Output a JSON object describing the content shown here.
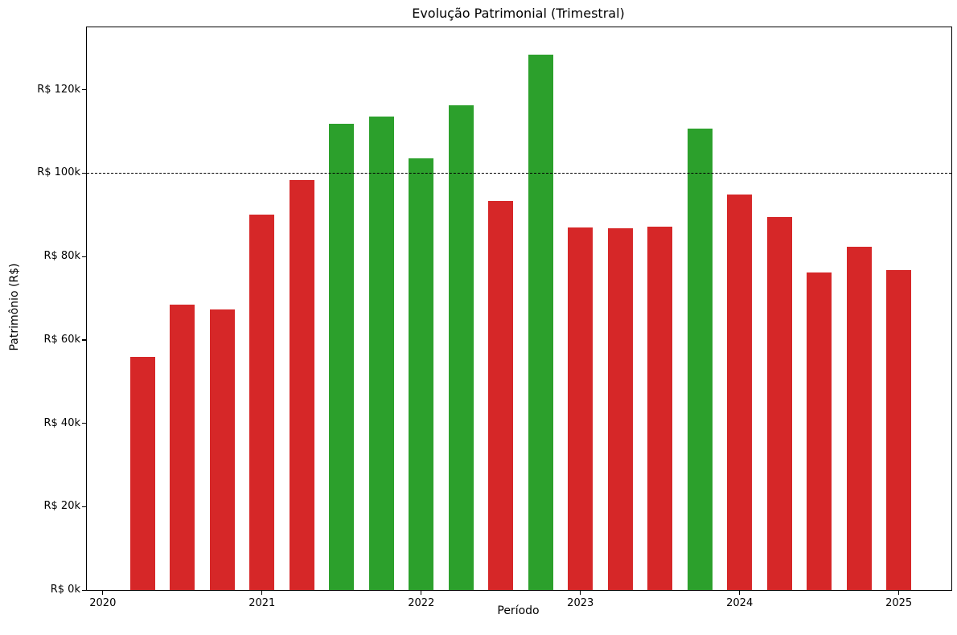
{
  "chart_data": {
    "type": "bar",
    "title": "Evolução Patrimonial (Trimestral)",
    "xlabel": "Período",
    "ylabel": "Patrimônio (R$)",
    "categories": [
      "2020-Q2",
      "2020-Q3",
      "2020-Q4",
      "2021-Q1",
      "2021-Q2",
      "2021-Q3",
      "2021-Q4",
      "2022-Q1",
      "2022-Q2",
      "2022-Q3",
      "2022-Q4",
      "2023-Q1",
      "2023-Q2",
      "2023-Q3",
      "2023-Q4",
      "2024-Q1",
      "2024-Q2",
      "2024-Q3",
      "2024-Q4",
      "2025-Q1"
    ],
    "x": [
      2020.25,
      2020.5,
      2020.75,
      2021.0,
      2021.25,
      2021.5,
      2021.75,
      2022.0,
      2022.25,
      2022.5,
      2022.75,
      2023.0,
      2023.25,
      2023.5,
      2023.75,
      2024.0,
      2024.25,
      2024.5,
      2024.75,
      2025.0
    ],
    "values_thousands": [
      55.9,
      68.4,
      67.3,
      90.0,
      98.4,
      111.9,
      113.6,
      103.5,
      116.3,
      93.4,
      128.4,
      87.0,
      86.7,
      87.2,
      110.7,
      94.9,
      89.4,
      76.1,
      82.3,
      76.8
    ],
    "bar_colors": [
      "#d62728",
      "#d62728",
      "#d62728",
      "#d62728",
      "#d62728",
      "#2ca02c",
      "#2ca02c",
      "#2ca02c",
      "#2ca02c",
      "#d62728",
      "#2ca02c",
      "#d62728",
      "#d62728",
      "#d62728",
      "#2ca02c",
      "#d62728",
      "#d62728",
      "#d62728",
      "#d62728",
      "#d62728"
    ],
    "color_legend": {
      "above_100k": "#2ca02c",
      "below_100k": "#d62728"
    },
    "threshold": {
      "value_thousands": 100,
      "color": "#000000",
      "style": "dashed"
    },
    "y_ticks": [
      {
        "value": 0,
        "label": "R$ 0k"
      },
      {
        "value": 20,
        "label": "R$ 20k"
      },
      {
        "value": 40,
        "label": "R$ 40k"
      },
      {
        "value": 60,
        "label": "R$ 60k"
      },
      {
        "value": 80,
        "label": "R$ 80k"
      },
      {
        "value": 100,
        "label": "R$ 100k"
      },
      {
        "value": 120,
        "label": "R$ 120k"
      }
    ],
    "x_ticks": [
      {
        "value": 2020,
        "label": "2020"
      },
      {
        "value": 2021,
        "label": "2021"
      },
      {
        "value": 2022,
        "label": "2022"
      },
      {
        "value": 2023,
        "label": "2023"
      },
      {
        "value": 2024,
        "label": "2024"
      },
      {
        "value": 2025,
        "label": "2025"
      }
    ],
    "ylim": [
      0,
      135
    ],
    "xlim": [
      2019.9,
      2025.33
    ],
    "bar_width_years": 0.156,
    "grid": false,
    "legend": false
  }
}
